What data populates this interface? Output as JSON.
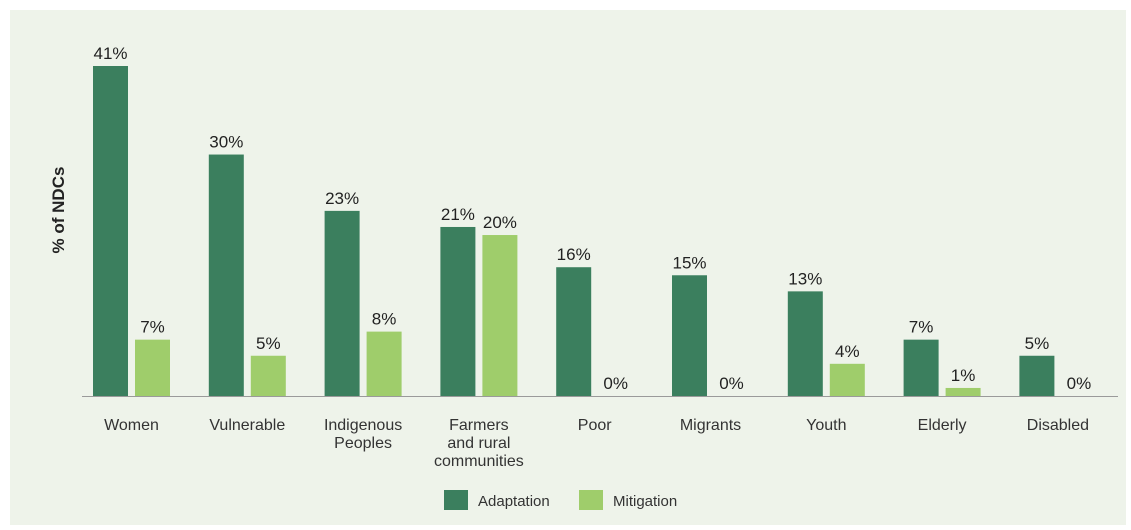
{
  "chart_data": {
    "type": "bar",
    "ylabel": "% of NDCs",
    "xlabel": "",
    "ylim": [
      0,
      41
    ],
    "grid": false,
    "legend_placement": "bottom-center",
    "categories": [
      [
        "Women"
      ],
      [
        "Vulnerable"
      ],
      [
        "Indigenous",
        "Peoples"
      ],
      [
        "Farmers",
        "and rural",
        "communities"
      ],
      [
        "Poor"
      ],
      [
        "Migrants"
      ],
      [
        "Youth"
      ],
      [
        "Elderly"
      ],
      [
        "Disabled"
      ]
    ],
    "series": [
      {
        "name": "Adaptation",
        "color": "#3b7f5e",
        "values": [
          41,
          30,
          23,
          21,
          16,
          15,
          13,
          7,
          5
        ],
        "labels": [
          "41%",
          "30%",
          "23%",
          "21%",
          "16%",
          "15%",
          "13%",
          "7%",
          "5%"
        ]
      },
      {
        "name": "Mitigation",
        "color": "#9fcd6b",
        "values": [
          7,
          5,
          8,
          20,
          0,
          0,
          4,
          1,
          0
        ],
        "labels": [
          "7%",
          "5%",
          "8%",
          "20%",
          "0%",
          "0%",
          "4%",
          "1%",
          "0%"
        ]
      }
    ]
  }
}
